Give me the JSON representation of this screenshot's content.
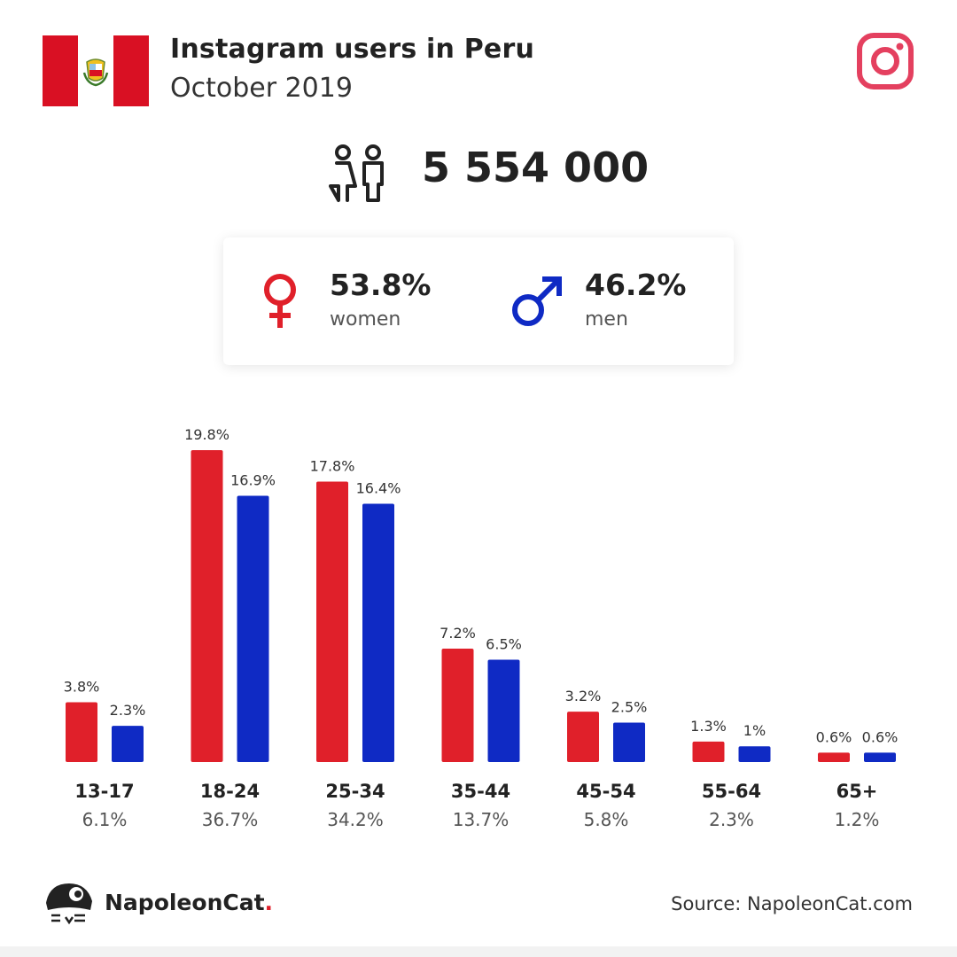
{
  "header": {
    "title": "Instagram users in Peru",
    "subtitle": "October 2019"
  },
  "icons": {
    "flag": "peru-flag-icon",
    "brand": "instagram-icon",
    "users": "users-couple-icon",
    "female": "female-symbol-icon",
    "male": "male-symbol-icon",
    "logo": "napoleoncat-logo-icon"
  },
  "summary": {
    "total": "5 554 000",
    "women": {
      "pct": "53.8%",
      "label": "women"
    },
    "men": {
      "pct": "46.2%",
      "label": "men"
    }
  },
  "colors": {
    "women": "#e0202a",
    "men": "#0f2ac4",
    "instagram": "#e4405f",
    "flag_red": "#d91023"
  },
  "chart_data": {
    "type": "bar",
    "title": "",
    "xlabel": "",
    "ylabel": "",
    "ylim": [
      0,
      20
    ],
    "grid": false,
    "categories": [
      "13-17",
      "18-24",
      "25-34",
      "35-44",
      "45-54",
      "55-64",
      "65+"
    ],
    "category_totals": [
      "6.1%",
      "36.7%",
      "34.2%",
      "13.7%",
      "5.8%",
      "2.3%",
      "1.2%"
    ],
    "series": [
      {
        "values": [
          3.8,
          19.8,
          17.8,
          7.2,
          3.2,
          1.3,
          0.6
        ],
        "labels": [
          "3.8%",
          "19.8%",
          "17.8%",
          "7.2%",
          "3.2%",
          "1.3%",
          "0.6%"
        ]
      },
      {
        "values": [
          2.3,
          16.9,
          16.4,
          6.5,
          2.5,
          1,
          0.6
        ],
        "labels": [
          "2.3%",
          "16.9%",
          "16.4%",
          "6.5%",
          "2.5%",
          "1%",
          "0.6%"
        ]
      }
    ]
  },
  "footer": {
    "brand": "NapoleonCat",
    "brand_dot": ".",
    "source": "Source: NapoleonCat.com"
  }
}
